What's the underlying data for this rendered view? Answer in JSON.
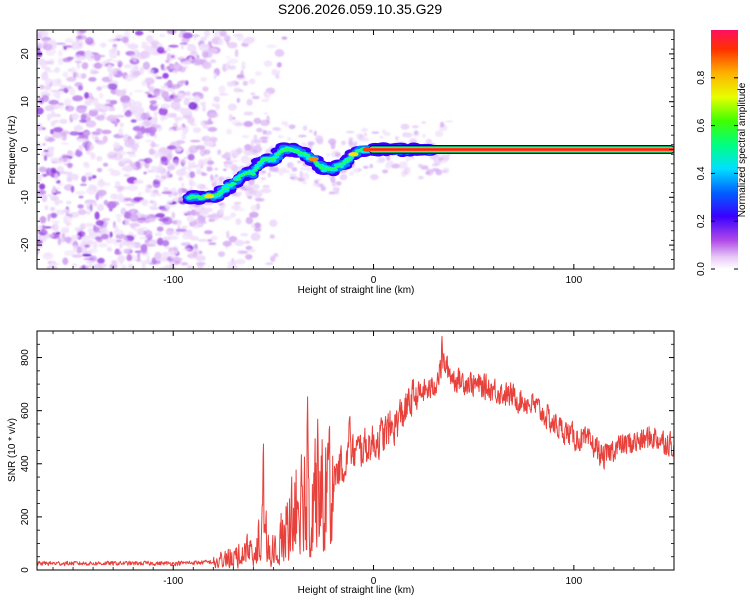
{
  "title": "S206.2026.059.10.35.G29",
  "chart_data": [
    {
      "type": "heatmap",
      "xlabel": "Height of straight line (km)",
      "ylabel": "Frequency (Hz)",
      "xlim": [
        -168,
        150
      ],
      "ylim": [
        -25,
        25
      ],
      "x_ticks": [
        -100,
        0,
        100
      ],
      "x_tick_labels": [
        "-100",
        "0",
        "100"
      ],
      "y_ticks": [
        -20,
        -10,
        0,
        10,
        20
      ],
      "y_tick_labels": [
        "-20",
        "-10",
        "0",
        "10",
        "20"
      ],
      "colorbar": {
        "label": "Normalized spectral amplitude",
        "range": [
          0,
          1
        ],
        "ticks": [
          0.0,
          0.2,
          0.4,
          0.6,
          0.8
        ],
        "tick_labels": [
          "0.0",
          "0.2",
          "0.4",
          "0.6",
          "0.8"
        ]
      },
      "ridge_track": {
        "x": [
          -92,
          -85,
          -78,
          -70,
          -65,
          -60,
          -55,
          -50,
          -45,
          -40,
          -35,
          -30,
          -25,
          -20,
          -15,
          -10,
          -5,
          0,
          10,
          20,
          30,
          50,
          100,
          150
        ],
        "y": [
          -10,
          -10,
          -9.5,
          -7,
          -5,
          -5,
          -2,
          -2,
          0,
          0,
          -1,
          -2,
          -4,
          -4,
          -3,
          -1,
          0,
          0,
          0,
          0,
          0,
          0,
          0,
          0
        ]
      },
      "noise_region_x": [
        -168,
        -75
      ]
    },
    {
      "type": "line",
      "xlabel": "Height of straight line (km)",
      "ylabel": "SNR (10 * v/v)",
      "xlim": [
        -168,
        150
      ],
      "ylim": [
        0,
        900
      ],
      "x_ticks": [
        -100,
        0,
        100
      ],
      "x_tick_labels": [
        "-100",
        "0",
        "100"
      ],
      "y_ticks": [
        0,
        200,
        400,
        600,
        800
      ],
      "y_tick_labels": [
        "0",
        "200",
        "400",
        "600",
        "800"
      ],
      "color": "#e8413c",
      "series_envelope": {
        "x": [
          -168,
          -100,
          -80,
          -70,
          -60,
          -55,
          -50,
          -45,
          -40,
          -35,
          -30,
          -25,
          -20,
          -10,
          0,
          10,
          20,
          30,
          35,
          40,
          50,
          60,
          70,
          80,
          90,
          100,
          110,
          115,
          120,
          130,
          140,
          150
        ],
        "y": [
          25,
          25,
          30,
          60,
          100,
          150,
          80,
          150,
          250,
          300,
          320,
          330,
          360,
          440,
          480,
          540,
          650,
          690,
          780,
          720,
          700,
          680,
          650,
          620,
          550,
          500,
          470,
          420,
          460,
          480,
          500,
          470
        ]
      },
      "spikes": [
        {
          "x": -55,
          "y": 490
        },
        {
          "x": -33,
          "y": 690
        },
        {
          "x": -28,
          "y": 600
        },
        {
          "x": -12,
          "y": 580
        },
        {
          "x": 34,
          "y": 890
        }
      ]
    }
  ]
}
